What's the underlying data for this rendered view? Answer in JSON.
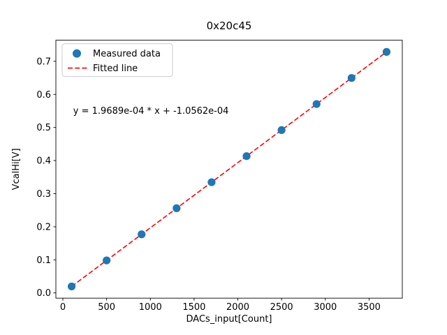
{
  "figure": {
    "title": "0x20c45",
    "xlabel": "DACs_input[Count]",
    "ylabel": "VcalHi[V]",
    "annotation": "y = 1.9689e-04 * x + -1.0562e-04"
  },
  "chart_data": {
    "type": "scatter",
    "title": "0x20c45",
    "xlabel": "DACs_input[Count]",
    "ylabel": "VcalHi[V]",
    "annotation": "y = 1.9689e-04 * x + -1.0562e-04",
    "x": [
      100,
      500,
      900,
      1300,
      1700,
      2100,
      2500,
      2900,
      3300,
      3700
    ],
    "series": [
      {
        "name": "Measured data",
        "type": "scatter",
        "color": "#1f77b4",
        "y": [
          0.0196,
          0.0983,
          0.1771,
          0.2559,
          0.3346,
          0.4134,
          0.4921,
          0.5709,
          0.6496,
          0.7284
        ]
      },
      {
        "name": "Fitted line",
        "type": "line",
        "style": "dashed",
        "color": "#ff0000",
        "fit": {
          "slope": 0.00019689,
          "intercept": -0.00010562
        }
      }
    ],
    "xlim": [
      -80,
      3880
    ],
    "ylim": [
      -0.0158,
      0.7638
    ],
    "xticks": [
      0,
      500,
      1000,
      1500,
      2000,
      2500,
      3000,
      3500
    ],
    "yticks": [
      0.0,
      0.1,
      0.2,
      0.3,
      0.4,
      0.5,
      0.6,
      0.7
    ],
    "grid": false,
    "legend_position": "upper left",
    "legend": [
      {
        "label": "Measured data",
        "marker": "dot",
        "color": "#1f77b4"
      },
      {
        "label": "Fitted line",
        "marker": "dashed-line",
        "color": "#ff0000"
      }
    ]
  }
}
